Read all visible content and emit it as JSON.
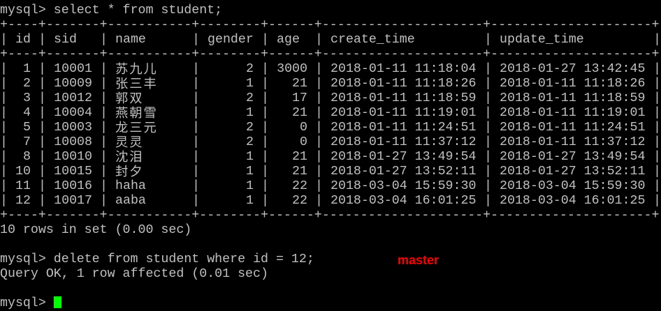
{
  "terminal": {
    "prompt": "mysql> ",
    "command1": "select * from student;",
    "table": {
      "columns": [
        "id",
        "sid",
        "name",
        "gender",
        "age",
        "create_time",
        "update_time"
      ],
      "rows": [
        [
          "1",
          "10001",
          "苏九儿",
          "2",
          "3000",
          "2018-01-11 11:18:04",
          "2018-01-27 13:42:45"
        ],
        [
          "2",
          "10009",
          "张三丰",
          "1",
          "21",
          "2018-01-11 11:18:26",
          "2018-01-11 11:18:26"
        ],
        [
          "3",
          "10012",
          "郭双",
          "2",
          "17",
          "2018-01-11 11:18:59",
          "2018-01-11 11:18:59"
        ],
        [
          "4",
          "10004",
          "燕朝雪",
          "1",
          "21",
          "2018-01-11 11:19:01",
          "2018-01-11 11:19:01"
        ],
        [
          "5",
          "10003",
          "龙三元",
          "2",
          "0",
          "2018-01-11 11:24:51",
          "2018-01-11 11:24:51"
        ],
        [
          "7",
          "10008",
          "灵灵",
          "2",
          "0",
          "2018-01-11 11:37:12",
          "2018-01-11 11:37:12"
        ],
        [
          "8",
          "10010",
          "沈泪",
          "1",
          "21",
          "2018-01-27 13:49:54",
          "2018-01-27 13:49:54"
        ],
        [
          "10",
          "10015",
          "封夕",
          "1",
          "21",
          "2018-01-27 13:52:11",
          "2018-01-27 13:52:11"
        ],
        [
          "11",
          "10016",
          "haha",
          "1",
          "22",
          "2018-03-04 15:59:30",
          "2018-03-04 15:59:30"
        ],
        [
          "12",
          "10017",
          "aaba",
          "1",
          "22",
          "2018-03-04 16:01:25",
          "2018-03-04 16:01:25"
        ]
      ]
    },
    "result1": "10 rows in set (0.00 sec)",
    "command2": "delete from student where id = 12;",
    "result2": "Query OK, 1 row affected (0.01 sec)",
    "annotation": "master",
    "colors": {
      "text": "#c0c0c0",
      "background": "#000000",
      "annotation": "#ff0000",
      "cursor": "#00ff00"
    }
  }
}
